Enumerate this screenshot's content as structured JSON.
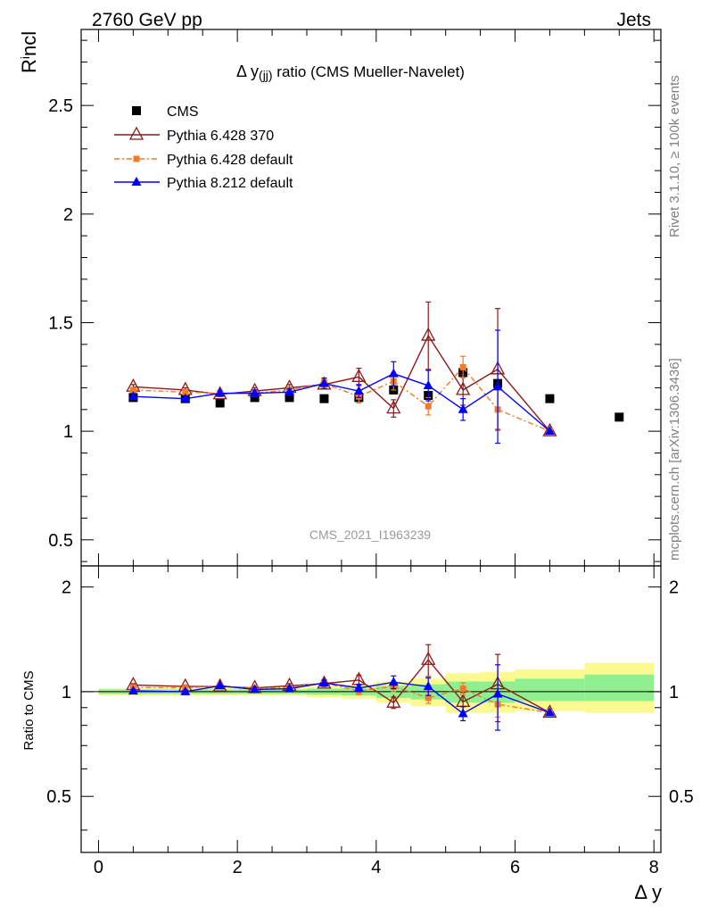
{
  "header": {
    "left": "2760 GeV pp",
    "right": "Jets",
    "side_upper": "Rivet 3.1.10, ≥ 100k events",
    "side_lower": "mcplots.cern.ch [arXiv:1306.3436]"
  },
  "chart_data": {
    "type": "scatter",
    "title": "Δ y(jj) ratio (CMS Mueller-Navelet)",
    "title_main": "Δ y",
    "title_sub": "(jj)",
    "title_rest": " ratio (CMS Mueller-Navelet)",
    "watermark": "CMS_2021_I1963239",
    "xlabel": "Δ y",
    "ylabel_main": "R",
    "ylabel_sup": "i",
    "ylabel_rest": "ncl",
    "ratio_ylabel": "Ratio to CMS",
    "xlim": [
      -0.25,
      8.1
    ],
    "ylim": [
      0.38,
      2.85
    ],
    "ratio_ylim": [
      0.345,
      2.3
    ],
    "x_ticks": [
      0,
      2,
      4,
      6,
      8
    ],
    "x_tick_labels": [
      "0",
      "2",
      "4",
      "6",
      "8"
    ],
    "y_ticks": [
      0.5,
      1,
      1.5,
      2,
      2.5
    ],
    "y_tick_labels": [
      "0.5",
      "1",
      "1.5",
      "2",
      "2.5"
    ],
    "ratio_y_ticks": [
      0.5,
      1,
      2
    ],
    "ratio_y_tick_labels": [
      "0.5",
      "1",
      "2"
    ],
    "series": [
      {
        "name": "CMS",
        "color": "#000000",
        "marker": "square",
        "x": [
          0.5,
          1.25,
          1.75,
          2.25,
          2.75,
          3.25,
          3.75,
          4.25,
          4.75,
          5.25,
          5.75,
          6.5,
          7.5
        ],
        "y": [
          1.155,
          1.15,
          1.13,
          1.155,
          1.155,
          1.15,
          1.155,
          1.19,
          1.165,
          1.27,
          1.22,
          1.15,
          1.065
        ]
      },
      {
        "name": "Pythia 6.428 370",
        "color": "#8b1a1a",
        "marker": "triangle-open",
        "x": [
          0.5,
          1.25,
          1.75,
          2.25,
          2.75,
          3.25,
          3.75,
          4.25,
          4.75,
          5.25,
          5.75,
          6.5
        ],
        "y": [
          1.205,
          1.19,
          1.17,
          1.185,
          1.2,
          1.215,
          1.25,
          1.105,
          1.44,
          1.19,
          1.285,
          1.0
        ],
        "err": [
          0.01,
          0.01,
          0.01,
          0.015,
          0.015,
          0.02,
          0.04,
          0.04,
          0.155,
          0.07,
          0.28,
          0.0
        ],
        "ratio": [
          1.045,
          1.035,
          1.035,
          1.025,
          1.04,
          1.055,
          1.08,
          0.93,
          1.235,
          0.935,
          1.05,
          0.87
        ],
        "ratio_err": [
          0.01,
          0.01,
          0.01,
          0.015,
          0.015,
          0.02,
          0.035,
          0.035,
          0.13,
          0.06,
          0.23,
          0.0
        ]
      },
      {
        "name": "Pythia 6.428 default",
        "color": "#f07b2a",
        "marker": "square-small",
        "x": [
          0.5,
          1.25,
          1.75,
          2.25,
          2.75,
          3.25,
          3.75,
          4.25,
          4.75,
          5.25,
          5.75,
          6.5
        ],
        "y": [
          1.19,
          1.18,
          1.175,
          1.175,
          1.19,
          1.22,
          1.16,
          1.23,
          1.115,
          1.295,
          1.1,
          1.0
        ],
        "err": [
          0.01,
          0.01,
          0.01,
          0.015,
          0.015,
          0.02,
          0.03,
          0.04,
          0.04,
          0.05,
          0.09,
          0.0
        ],
        "ratio": [
          1.03,
          1.025,
          1.04,
          1.02,
          1.03,
          1.06,
          1.005,
          1.035,
          0.96,
          1.02,
          0.92,
          0.87
        ],
        "ratio_err": [
          0.01,
          0.01,
          0.01,
          0.015,
          0.015,
          0.02,
          0.025,
          0.035,
          0.035,
          0.04,
          0.075,
          0.0
        ]
      },
      {
        "name": "Pythia 8.212 default",
        "color": "#0000ff",
        "marker": "triangle",
        "x": [
          0.5,
          1.25,
          1.75,
          2.25,
          2.75,
          3.25,
          3.75,
          4.25,
          4.75,
          5.25,
          5.75,
          6.5
        ],
        "y": [
          1.16,
          1.15,
          1.175,
          1.175,
          1.18,
          1.22,
          1.185,
          1.265,
          1.21,
          1.1,
          1.205,
          1.0
        ],
        "err": [
          0.01,
          0.01,
          0.01,
          0.015,
          0.015,
          0.025,
          0.03,
          0.055,
          0.07,
          0.05,
          0.26,
          0.0
        ],
        "ratio": [
          1.005,
          1.0,
          1.04,
          1.015,
          1.02,
          1.06,
          1.025,
          1.065,
          1.035,
          0.865,
          0.985,
          0.87
        ],
        "ratio_err": [
          0.01,
          0.01,
          0.01,
          0.015,
          0.015,
          0.02,
          0.025,
          0.045,
          0.06,
          0.04,
          0.21,
          0.0
        ]
      }
    ],
    "uncertainty_bands": {
      "edges": [
        0,
        1,
        1.5,
        2,
        2.5,
        3,
        3.5,
        4,
        4.5,
        5,
        5.5,
        6,
        7,
        8
      ],
      "inner_lo": [
        0.985,
        0.985,
        0.985,
        0.985,
        0.985,
        0.98,
        0.975,
        0.96,
        0.95,
        0.93,
        0.93,
        0.94,
        0.94
      ],
      "inner_hi": [
        1.015,
        1.015,
        1.015,
        1.015,
        1.015,
        1.02,
        1.025,
        1.04,
        1.05,
        1.07,
        1.07,
        1.09,
        1.12
      ],
      "outer_lo": [
        0.975,
        0.975,
        0.975,
        0.975,
        0.975,
        0.965,
        0.955,
        0.93,
        0.91,
        0.87,
        0.87,
        0.88,
        0.87
      ],
      "outer_hi": [
        1.025,
        1.025,
        1.025,
        1.025,
        1.03,
        1.035,
        1.05,
        1.07,
        1.09,
        1.13,
        1.14,
        1.16,
        1.21
      ],
      "inner_color": "#90f090",
      "outer_color": "#fafa90"
    }
  }
}
